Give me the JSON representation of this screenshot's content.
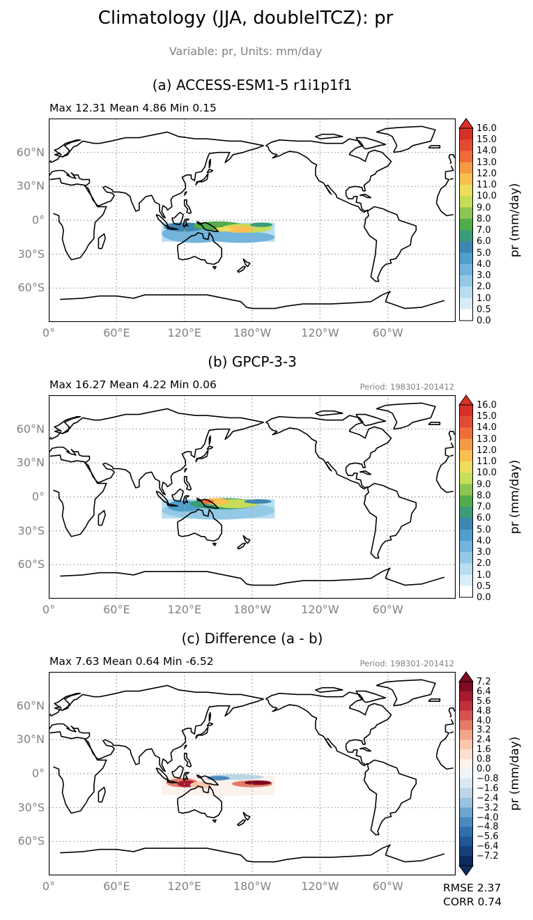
{
  "title": "Climatology (JJA, doubleITCZ): pr",
  "subtitle": "Variable: pr, Units: mm/day",
  "lat_labels": [
    "60°N",
    "30°N",
    "0°",
    "30°S",
    "60°S"
  ],
  "lon_labels": [
    "0°",
    "60°E",
    "120°E",
    "180°W",
    "120°W",
    "60°W"
  ],
  "panels": [
    {
      "title": "(a) ACCESS-ESM1-5 r1i1p1f1",
      "stats": "Max 12.31 Mean 4.86 Min 0.15",
      "period": "",
      "colorbar_label": "pr (mm/day)",
      "colorbar_ticks": [
        "16.0",
        "15.0",
        "14.0",
        "13.0",
        "12.0",
        "11.0",
        "10.0",
        "9.0",
        "8.0",
        "7.0",
        "6.0",
        "5.0",
        "4.0",
        "3.0",
        "2.0",
        "1.0",
        "0.5",
        "0.0"
      ],
      "colorbar_colors": [
        "#d73027",
        "#e34a33",
        "#ef6c3a",
        "#f49a45",
        "#f8c050",
        "#eedd5c",
        "#c5dd59",
        "#8cc652",
        "#53ac4c",
        "#3a9c78",
        "#3e86b0",
        "#4f9fcc",
        "#72b4dc",
        "#94c9e6",
        "#b7ddef",
        "#d9edf6",
        "#ffffff"
      ],
      "colorbar_extend": "max",
      "field": "access"
    },
    {
      "title": "(b) GPCP-3-3",
      "stats": "Max 16.27 Mean 4.22 Min 0.06",
      "period": "Period: 198301-201412",
      "colorbar_label": "pr (mm/day)",
      "colorbar_ticks": [
        "16.0",
        "15.0",
        "14.0",
        "13.0",
        "12.0",
        "11.0",
        "10.0",
        "9.0",
        "8.0",
        "7.0",
        "6.0",
        "5.0",
        "4.0",
        "3.0",
        "2.0",
        "1.0",
        "0.5",
        "0.0"
      ],
      "colorbar_colors": [
        "#d73027",
        "#e34a33",
        "#ef6c3a",
        "#f49a45",
        "#f8c050",
        "#eedd5c",
        "#c5dd59",
        "#8cc652",
        "#53ac4c",
        "#3a9c78",
        "#3e86b0",
        "#4f9fcc",
        "#72b4dc",
        "#94c9e6",
        "#b7ddef",
        "#d9edf6",
        "#ffffff"
      ],
      "colorbar_extend": "max",
      "field": "gpcp"
    },
    {
      "title": "(c) Difference (a - b)",
      "stats": "Max 7.63 Mean 0.64 Min -6.52",
      "period": "Period: 198301-201412",
      "colorbar_label": "pr (mm/day)",
      "colorbar_ticks": [
        "7.2",
        "6.4",
        "5.6",
        "4.8",
        "4.0",
        "3.2",
        "2.4",
        "1.6",
        "0.8",
        "0.0",
        "−0.8",
        "−1.6",
        "−2.4",
        "−3.2",
        "−4.0",
        "−4.8",
        "−5.6",
        "−6.4",
        "−7.2"
      ],
      "colorbar_colors": [
        "#7f0a22",
        "#a51a2c",
        "#c0303a",
        "#d55450",
        "#e47c68",
        "#f1a588",
        "#f8c7ae",
        "#fbe0cf",
        "#fbf2ec",
        "#eef3f8",
        "#d9e7f1",
        "#bcd6e8",
        "#97c1de",
        "#6ea6ce",
        "#4a8abd",
        "#316fab",
        "#225695",
        "#173f7a",
        "#0c2c5e"
      ],
      "colorbar_extend": "both",
      "field": "diff"
    }
  ],
  "metrics": {
    "rmse": "RMSE 2.37",
    "corr": "CORR 0.74"
  }
}
